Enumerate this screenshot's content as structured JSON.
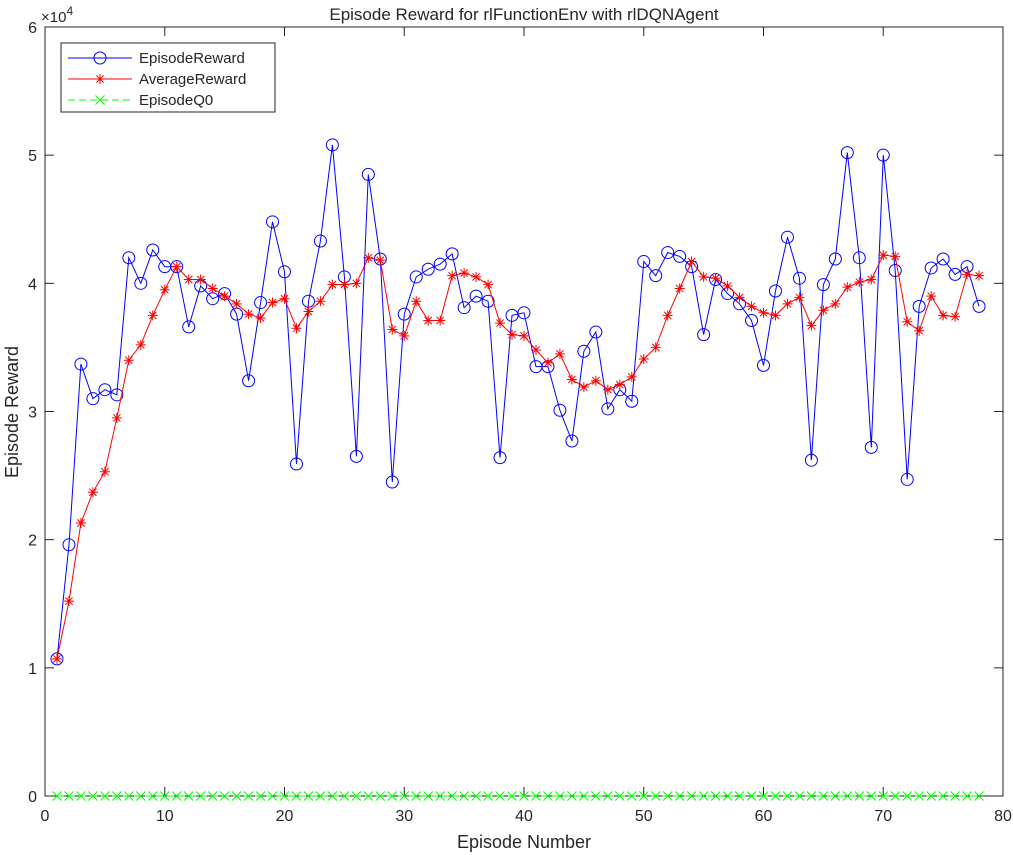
{
  "chart_data": {
    "type": "line",
    "title": "Episode Reward for rlFunctionEnv with rlDQNAgent",
    "xlabel": "Episode Number",
    "ylabel": "Episode Reward",
    "xlim": [
      0,
      80
    ],
    "ylim": [
      0,
      60000
    ],
    "xticks": [
      0,
      10,
      20,
      30,
      40,
      50,
      60,
      70,
      80
    ],
    "xtick_labels": [
      "0",
      "10",
      "20",
      "30",
      "40",
      "50",
      "60",
      "70",
      "80"
    ],
    "yticks": [
      0,
      10000,
      20000,
      30000,
      40000,
      50000,
      60000
    ],
    "ytick_labels": [
      "0",
      "1",
      "2",
      "3",
      "4",
      "5",
      "6"
    ],
    "y_exponent": "×10",
    "y_exponent_power": "4",
    "grid": false,
    "legend_position": "top-left",
    "series": [
      {
        "name": "EpisodeReward",
        "color": "#0000ff",
        "marker": "circle",
        "line": "solid",
        "x": [
          1,
          2,
          3,
          4,
          5,
          6,
          7,
          8,
          9,
          10,
          11,
          12,
          13,
          14,
          15,
          16,
          17,
          18,
          19,
          20,
          21,
          22,
          23,
          24,
          25,
          26,
          27,
          28,
          29,
          30,
          31,
          32,
          33,
          34,
          35,
          36,
          37,
          38,
          39,
          40,
          41,
          42,
          43,
          44,
          45,
          46,
          47,
          48,
          49,
          50,
          51,
          52,
          53,
          54,
          55,
          56,
          57,
          58,
          59,
          60,
          61,
          62,
          63,
          64,
          65,
          66,
          67,
          68,
          69,
          70,
          71,
          72,
          73,
          74,
          75,
          76,
          77,
          78
        ],
        "y": [
          10700,
          19600,
          33700,
          31000,
          31700,
          31300,
          42000,
          40000,
          42600,
          41300,
          41300,
          36600,
          39800,
          38800,
          39200,
          37600,
          32400,
          38500,
          44800,
          40900,
          25900,
          38600,
          43300,
          50800,
          40500,
          26500,
          48500,
          41900,
          24500,
          37600,
          40500,
          41100,
          41500,
          42300,
          38100,
          39000,
          38600,
          26400,
          37500,
          37700,
          33500,
          33500,
          30100,
          27700,
          34700,
          36200,
          30200,
          31700,
          30800,
          41700,
          40600,
          42400,
          42100,
          41300,
          36000,
          40300,
          39200,
          38400,
          37100,
          33600,
          39400,
          43600,
          40400,
          26200,
          39900,
          41900,
          50200,
          42000,
          27200,
          50000,
          41000,
          24700,
          38200,
          41200,
          41900,
          40700,
          41300,
          38200
        ]
      },
      {
        "name": "AverageReward",
        "color": "#ff0000",
        "marker": "asterisk",
        "line": "solid",
        "x": [
          1,
          2,
          3,
          4,
          5,
          6,
          7,
          8,
          9,
          10,
          11,
          12,
          13,
          14,
          15,
          16,
          17,
          18,
          19,
          20,
          21,
          22,
          23,
          24,
          25,
          26,
          27,
          28,
          29,
          30,
          31,
          32,
          33,
          34,
          35,
          36,
          37,
          38,
          39,
          40,
          41,
          42,
          43,
          44,
          45,
          46,
          47,
          48,
          49,
          50,
          51,
          52,
          53,
          54,
          55,
          56,
          57,
          58,
          59,
          60,
          61,
          62,
          63,
          64,
          65,
          66,
          67,
          68,
          69,
          70,
          71,
          72,
          73,
          74,
          75,
          76,
          77,
          78
        ],
        "y": [
          10700,
          15200,
          21300,
          23700,
          25300,
          29500,
          34000,
          35200,
          37500,
          39500,
          41300,
          40300,
          40300,
          39600,
          39000,
          38400,
          37600,
          37300,
          38500,
          38800,
          36500,
          37800,
          38600,
          39900,
          39900,
          40000,
          42000,
          41800,
          36400,
          35900,
          38600,
          37100,
          37100,
          40600,
          40800,
          40500,
          39900,
          36900,
          36000,
          35900,
          34800,
          33800,
          34500,
          32500,
          31900,
          32400,
          31700,
          32100,
          32700,
          34100,
          35000,
          37500,
          39600,
          41700,
          40500,
          40400,
          39800,
          38900,
          38200,
          37700,
          37500,
          38400,
          38900,
          36700,
          37900,
          38400,
          39700,
          40100,
          40300,
          42200,
          42100,
          37000,
          36300,
          39000,
          37500,
          37400,
          40700,
          40600
        ]
      },
      {
        "name": "EpisodeQ0",
        "color": "#00ff00",
        "marker": "x",
        "line": "dashed",
        "x": [
          1,
          2,
          3,
          4,
          5,
          6,
          7,
          8,
          9,
          10,
          11,
          12,
          13,
          14,
          15,
          16,
          17,
          18,
          19,
          20,
          21,
          22,
          23,
          24,
          25,
          26,
          27,
          28,
          29,
          30,
          31,
          32,
          33,
          34,
          35,
          36,
          37,
          38,
          39,
          40,
          41,
          42,
          43,
          44,
          45,
          46,
          47,
          48,
          49,
          50,
          51,
          52,
          53,
          54,
          55,
          56,
          57,
          58,
          59,
          60,
          61,
          62,
          63,
          64,
          65,
          66,
          67,
          68,
          69,
          70,
          71,
          72,
          73,
          74,
          75,
          76,
          77,
          78
        ],
        "y": [
          0,
          0,
          0,
          0,
          0,
          0,
          0,
          0,
          0,
          0,
          0,
          0,
          0,
          0,
          0,
          0,
          0,
          0,
          0,
          0,
          0,
          0,
          0,
          0,
          0,
          0,
          0,
          0,
          0,
          0,
          0,
          0,
          0,
          0,
          0,
          0,
          0,
          0,
          0,
          0,
          0,
          0,
          0,
          0,
          0,
          0,
          0,
          0,
          0,
          0,
          0,
          0,
          0,
          0,
          0,
          0,
          0,
          0,
          0,
          0,
          0,
          0,
          0,
          0,
          0,
          0,
          0,
          0,
          0,
          0,
          0,
          0,
          0,
          0,
          0,
          0,
          0,
          0
        ]
      }
    ]
  }
}
